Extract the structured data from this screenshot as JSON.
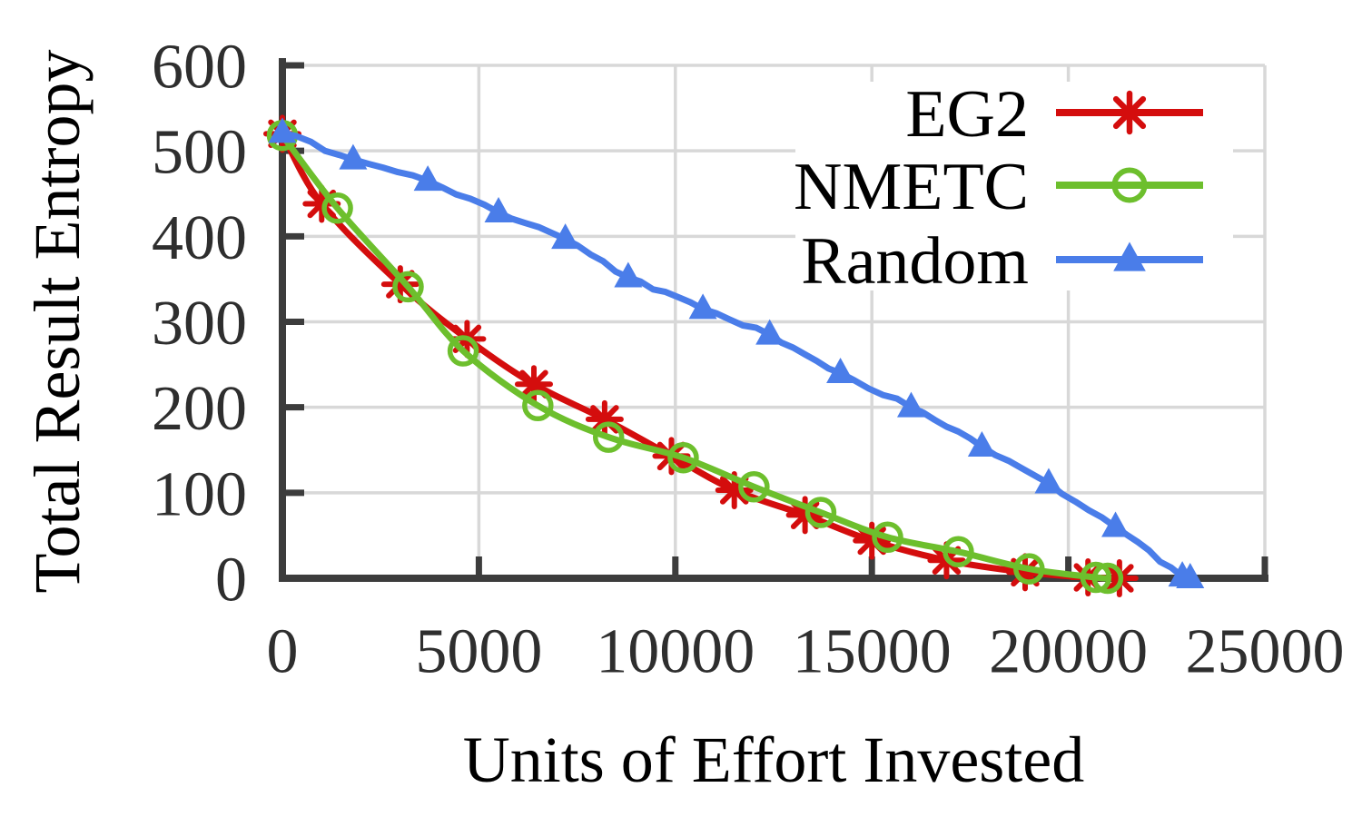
{
  "chart_data": {
    "type": "line",
    "title": "",
    "xlabel": "Units of Effort Invested",
    "ylabel": "Total Result Entropy",
    "xlim": [
      0,
      25000
    ],
    "ylim": [
      0,
      600
    ],
    "xticks": [
      0,
      5000,
      10000,
      15000,
      20000,
      25000
    ],
    "yticks": [
      0,
      100,
      200,
      300,
      400,
      500,
      600
    ],
    "grid": true,
    "legend_position": "top-right-inside",
    "series": [
      {
        "name": "EG2",
        "color": "#d40d0d",
        "marker": "asterisk",
        "line_style": "smooth",
        "points": [
          [
            0,
            520
          ],
          [
            1000,
            438
          ],
          [
            3000,
            344
          ],
          [
            4700,
            280
          ],
          [
            6400,
            227
          ],
          [
            8200,
            186
          ],
          [
            9900,
            143
          ],
          [
            11500,
            103
          ],
          [
            13300,
            74
          ],
          [
            15000,
            44
          ],
          [
            16900,
            21
          ],
          [
            18900,
            7
          ],
          [
            20500,
            1
          ],
          [
            21300,
            0
          ]
        ]
      },
      {
        "name": "NMETC",
        "color": "#6dbf2d",
        "marker": "open-circle",
        "line_style": "smooth",
        "points": [
          [
            0,
            518
          ],
          [
            1400,
            433
          ],
          [
            3200,
            341
          ],
          [
            4600,
            266
          ],
          [
            6500,
            202
          ],
          [
            8300,
            165
          ],
          [
            10200,
            141
          ],
          [
            12000,
            107
          ],
          [
            13700,
            77
          ],
          [
            15400,
            48
          ],
          [
            17200,
            31
          ],
          [
            19000,
            11
          ],
          [
            20700,
            1
          ],
          [
            21000,
            0
          ]
        ]
      },
      {
        "name": "Random",
        "color": "#4a7de9",
        "marker": "filled-triangle",
        "line_style": "jagged",
        "points": [
          [
            0,
            521
          ],
          [
            1800,
            490
          ],
          [
            3700,
            465
          ],
          [
            5500,
            428
          ],
          [
            7200,
            397
          ],
          [
            8800,
            352
          ],
          [
            10700,
            315
          ],
          [
            12400,
            285
          ],
          [
            14200,
            240
          ],
          [
            16000,
            200
          ],
          [
            17800,
            154
          ],
          [
            19500,
            111
          ],
          [
            21200,
            60
          ],
          [
            22900,
            2
          ],
          [
            23100,
            0
          ]
        ]
      }
    ]
  },
  "style": {
    "background": "#ffffff",
    "grid_color": "#d8d8d8",
    "axis_color": "#3c3c3c",
    "tick_label_color": "#2e2e2e",
    "text_color": "#000000"
  }
}
